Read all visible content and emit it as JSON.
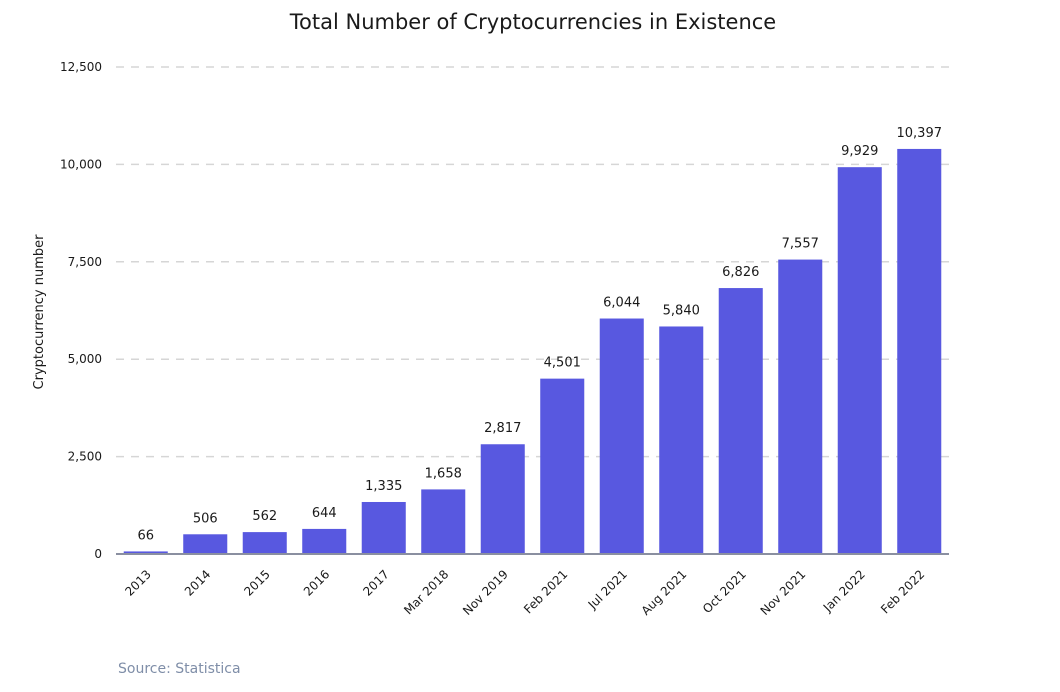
{
  "chart_data": {
    "type": "bar",
    "title": "Total Number of Cryptocurrencies in Existence",
    "xlabel": "",
    "ylabel": "Cryptocurrency number",
    "categories": [
      "2013",
      "2014",
      "2015",
      "2016",
      "2017",
      "Mar 2018",
      "Nov 2019",
      "Feb 2021",
      "Jul 2021",
      "Aug 2021",
      "Oct 2021",
      "Nov 2021",
      "Jan 2022",
      "Feb 2022"
    ],
    "values": [
      66,
      506,
      562,
      644,
      1335,
      1658,
      2817,
      4501,
      6044,
      5840,
      6826,
      7557,
      9929,
      10397
    ],
    "data_labels": [
      "66",
      "506",
      "562",
      "644",
      "1,335",
      "1,658",
      "2,817",
      "4,501",
      "6,044",
      "5,840",
      "6,826",
      "7,557",
      "9,929",
      "10,397"
    ],
    "ylim": [
      0,
      12500
    ],
    "yticks": [
      0,
      2500,
      5000,
      7500,
      10000,
      12500
    ],
    "ytick_labels": [
      "0",
      "2,500",
      "5,000",
      "7,500",
      "10,000",
      "12,500"
    ],
    "grid": true,
    "legend": "none",
    "bar_color": "#5858e0"
  },
  "source": "Source: Statistica"
}
